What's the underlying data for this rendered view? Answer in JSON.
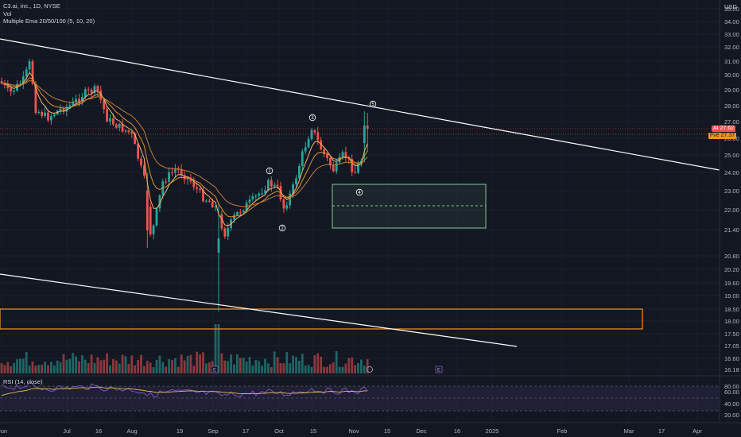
{
  "header": {
    "symbol_title": "C3.ai, inc., 1D, NYSE",
    "vol_label": "Vol",
    "ema_label": "Multiple Ema 20/50/100 (5, 10, 20)",
    "currency": "USD"
  },
  "price_axis": {
    "ticks": [
      "35.00",
      "34.00",
      "33.00",
      "32.00",
      "31.00",
      "30.00",
      "29.00",
      "28.00",
      "27.00",
      "26.00",
      "25.00",
      "24.00",
      "23.00",
      "22.00",
      "21.40",
      "20.80",
      "20.20",
      "19.60",
      "19.00",
      "18.50",
      "18.00",
      "17.50",
      "17.05",
      "16.60",
      "16.18"
    ]
  },
  "price_tags": {
    "last": {
      "name": "AI",
      "value": "27.62",
      "color": "#ef5350"
    },
    "ema": {
      "name": "Fve",
      "value": "27.37",
      "color": "#f7931a"
    }
  },
  "time_axis": {
    "labels": [
      "Jun",
      "Jul",
      "16",
      "Aug",
      "19",
      "Sep",
      "17",
      "Oct",
      "15",
      "Nov",
      "15",
      "Dec",
      "16",
      "2025",
      "Feb",
      "Mar",
      "17",
      "Apr"
    ]
  },
  "wave_labels": [
    "1",
    "2",
    "3",
    "4",
    "5"
  ],
  "rsi": {
    "label": "RSI (14, close)",
    "ticks": [
      "80.00",
      "60.00",
      "40.00",
      "20.00"
    ]
  },
  "markers": {
    "earnings": "E"
  },
  "colors": {
    "background": "#131722",
    "up": "#26a69a",
    "down": "#ef5350",
    "ema_fast": "#f5b56b",
    "ema_slow": "#e0922f",
    "zone_green": "#81c995",
    "zone_orange": "#f7931a",
    "rsi_band": "#7e57c2"
  }
}
